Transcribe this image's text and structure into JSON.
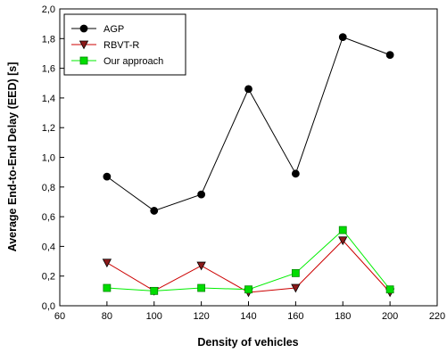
{
  "chart_data": {
    "type": "line",
    "title": "",
    "xlabel": "Density of vehicles",
    "ylabel": "Average End-to-End Delay (EED) [s]",
    "xlim": [
      60,
      220
    ],
    "ylim": [
      0,
      2.0
    ],
    "xticks": [
      60,
      80,
      100,
      120,
      140,
      160,
      180,
      200,
      220
    ],
    "yticks": [
      0,
      0.2,
      0.4,
      0.6,
      0.8,
      1.0,
      1.2,
      1.4,
      1.6,
      1.8,
      2.0
    ],
    "xtick_labels": [
      "60",
      "80",
      "100",
      "120",
      "140",
      "160",
      "180",
      "200",
      "220"
    ],
    "ytick_labels": [
      "0,0",
      "0,2",
      "0,4",
      "0,6",
      "0,8",
      "1,0",
      "1,2",
      "1,4",
      "1,6",
      "1,8",
      "2,0"
    ],
    "grid": false,
    "legend_position": "top-left",
    "x": [
      80,
      100,
      120,
      140,
      160,
      180,
      200
    ],
    "series": [
      {
        "name": "AGP",
        "values": [
          0.87,
          0.64,
          0.75,
          1.46,
          0.89,
          1.81,
          1.69
        ],
        "color": "#000000",
        "marker_color": "#000000",
        "marker": "circle"
      },
      {
        "name": "RBVT-R",
        "values": [
          0.29,
          0.1,
          0.27,
          0.09,
          0.12,
          0.44,
          0.09
        ],
        "color": "#cc0000",
        "marker_color": "#8b1a1a",
        "marker": "triangle-down"
      },
      {
        "name": "Our approach",
        "values": [
          0.12,
          0.1,
          0.12,
          0.11,
          0.22,
          0.51,
          0.11
        ],
        "color": "#00ee00",
        "marker_color": "#00dd00",
        "marker": "square"
      }
    ]
  }
}
